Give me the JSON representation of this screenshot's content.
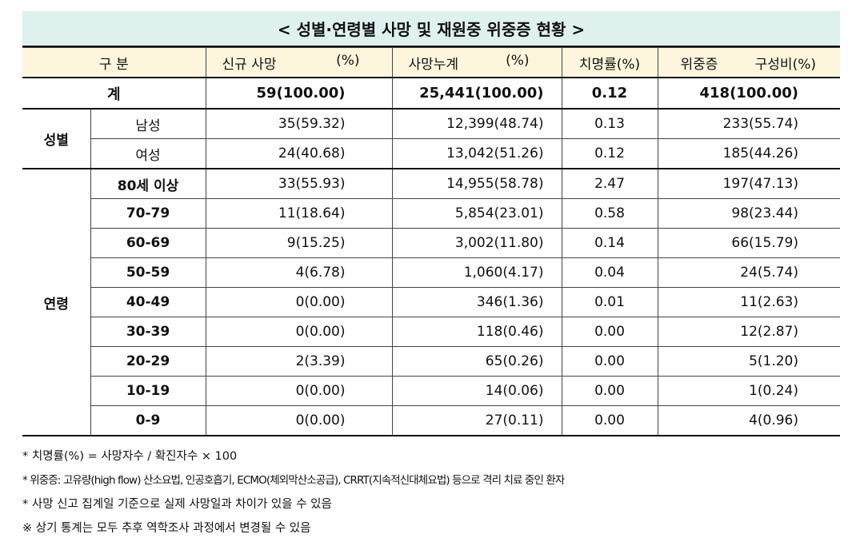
{
  "title": "< 성별·연령별 사망 및 재원중 위중증 현황 >",
  "header": {
    "category": "구 분",
    "new_deaths": "신규 사망",
    "new_deaths_pct": "(%)",
    "cumulative": "사망누계",
    "cumulative_pct": "(%)",
    "fatality": "치명률(%)",
    "severe": "위중증",
    "severe_pct": "구성비(%)"
  },
  "total": {
    "label": "계",
    "cells": [
      "59(100.00)",
      "25,441(100.00)",
      "0.12",
      "418(100.00)"
    ]
  },
  "groups": [
    {
      "label": "성별",
      "rows": [
        {
          "label": "남성",
          "cells": [
            "35(59.32)",
            "12,399(48.74)",
            "0.13",
            "233(55.74)"
          ]
        },
        {
          "label": "여성",
          "cells": [
            "24(40.68)",
            "13,042(51.26)",
            "0.12",
            "185(44.26)"
          ]
        }
      ]
    },
    {
      "label": "연령",
      "rows": [
        {
          "label": "80세 이상",
          "cells": [
            "33(55.93)",
            "14,955(58.78)",
            "2.47",
            "197(47.13)"
          ]
        },
        {
          "label": "70-79",
          "cells": [
            "11(18.64)",
            "5,854(23.01)",
            "0.58",
            "98(23.44)"
          ]
        },
        {
          "label": "60-69",
          "cells": [
            "9(15.25)",
            "3,002(11.80)",
            "0.14",
            "66(15.79)"
          ]
        },
        {
          "label": "50-59",
          "cells": [
            "4(6.78)",
            "1,060(4.17)",
            "0.04",
            "24(5.74)"
          ]
        },
        {
          "label": "40-49",
          "cells": [
            "0(0.00)",
            "346(1.36)",
            "0.01",
            "11(2.63)"
          ]
        },
        {
          "label": "30-39",
          "cells": [
            "0(0.00)",
            "118(0.46)",
            "0.00",
            "12(2.87)"
          ]
        },
        {
          "label": "20-29",
          "cells": [
            "2(3.39)",
            "65(0.26)",
            "0.00",
            "5(1.20)"
          ]
        },
        {
          "label": "10-19",
          "cells": [
            "0(0.00)",
            "14(0.06)",
            "0.00",
            "1(0.24)"
          ]
        },
        {
          "label": "0-9",
          "cells": [
            "0(0.00)",
            "27(0.11)",
            "0.00",
            "4(0.96)"
          ]
        }
      ]
    }
  ],
  "notes": [
    "* 치명률(%) = 사망자수 / 확진자수 × 100",
    "* 위중증: 고유량(high flow) 산소요법, 인공호흡기, ECMO(체외막산소공급), CRRT(지속적신대체요법) 등으로 격리 치료 중인 환자",
    "* 사망 신고 집계일 기준으로 실제 사망일과 차이가 있을 수 있음",
    "※ 상기 통계는 모두 추후 역학조사 과정에서 변경될 수 있음"
  ]
}
